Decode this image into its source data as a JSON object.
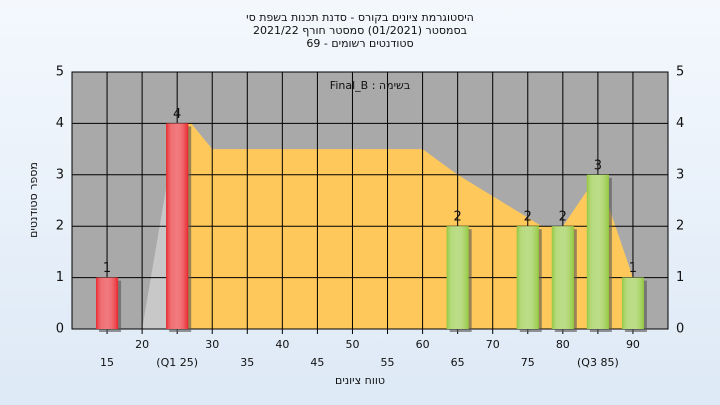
{
  "chart_data": {
    "type": "histogram",
    "title": "היסטוגרמת ציונים בקורס - סדנת תכנות בשפת סי",
    "subtitle": "בסמסטר  (01/2021)  סמסטר חורף 2021/22",
    "subtitle2": "סטודנטים רשומים - 69",
    "annotation": "Final_B : בשימה",
    "x_label": "טווח ציונים",
    "y_label": "מספר סטודנטים",
    "x": [
      15,
      25,
      65,
      75,
      80,
      85,
      90
    ],
    "values": [
      1,
      4,
      2,
      2,
      2,
      3,
      1
    ],
    "colors": [
      "#e8262c",
      "#e8262c",
      "#92c83e",
      "#92c83e",
      "#92c83e",
      "#92c83e",
      "#92c83e"
    ],
    "areas": [
      {
        "color": "#ffc85a",
        "x": [
          25,
          27,
          30,
          60,
          65,
          77,
          80,
          85,
          90
        ],
        "values": [
          4,
          4,
          3.5,
          3.5,
          3,
          2,
          2,
          3,
          1
        ]
      },
      {
        "color": "#c8c8c8",
        "x": [
          20,
          25
        ],
        "values": [
          0,
          4
        ]
      }
    ],
    "xlim": [
      10,
      95
    ],
    "ylim": [
      0,
      5
    ],
    "xticks": [
      15,
      20,
      {
        "value": 25,
        "label": "(Q1 25)"
      },
      30,
      35,
      40,
      45,
      50,
      55,
      60,
      65,
      70,
      75,
      80,
      {
        "value": 85,
        "label": "(Q3 85)"
      },
      90
    ],
    "yticks": [
      0,
      1,
      2,
      3,
      4,
      5
    ],
    "grid": true
  }
}
